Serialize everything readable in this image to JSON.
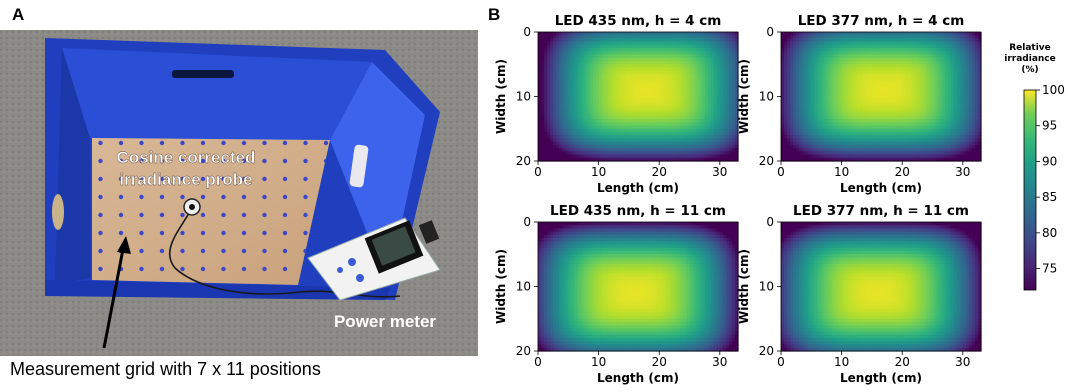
{
  "figure": {
    "panel_a_label": "A",
    "panel_b_label": "B"
  },
  "photo": {
    "probe_label_line1": "Cosine corrected",
    "probe_label_line2": "irradiance probe",
    "power_meter_label": "Power meter",
    "grid_caption": "Measurement grid with 7 x 11 positions"
  },
  "colorbar": {
    "title_line1": "Relative",
    "title_line2": "irradiance",
    "title_line3": "(%)",
    "min": 72,
    "max": 100,
    "ticks": [
      "75",
      "80",
      "85",
      "90",
      "95",
      "100"
    ]
  },
  "chart_data": [
    {
      "type": "heatmap",
      "title": "LED 435 nm, h = 4 cm",
      "xlabel": "Length (cm)",
      "ylabel": "Width (cm)",
      "xlim": [
        0,
        33
      ],
      "ylim": [
        20,
        0
      ],
      "xticks": [
        "0",
        "10",
        "20",
        "30"
      ],
      "yticks": [
        "0",
        "10",
        "20"
      ],
      "peak": {
        "x": 18,
        "y": 9
      },
      "values_percent": {
        "min": 72,
        "max": 100
      }
    },
    {
      "type": "heatmap",
      "title": "LED 377 nm, h = 4 cm",
      "xlabel": "Length (cm)",
      "ylabel": "Width (cm)",
      "xlim": [
        0,
        33
      ],
      "ylim": [
        20,
        0
      ],
      "xticks": [
        "0",
        "10",
        "20",
        "30"
      ],
      "yticks": [
        "0",
        "10",
        "20"
      ],
      "peak": {
        "x": 17,
        "y": 9
      },
      "values_percent": {
        "min": 72,
        "max": 100
      }
    },
    {
      "type": "heatmap",
      "title": "LED 435 nm, h = 11 cm",
      "xlabel": "Length (cm)",
      "ylabel": "Width (cm)",
      "xlim": [
        0,
        33
      ],
      "ylim": [
        20,
        0
      ],
      "xticks": [
        "0",
        "10",
        "20",
        "30"
      ],
      "yticks": [
        "0",
        "10",
        "20"
      ],
      "peak": {
        "x": 16,
        "y": 11
      },
      "values_percent": {
        "min": 72,
        "max": 100
      }
    },
    {
      "type": "heatmap",
      "title": "LED 377 nm, h = 11 cm",
      "xlabel": "Length (cm)",
      "ylabel": "Width (cm)",
      "xlim": [
        0,
        33
      ],
      "ylim": [
        20,
        0
      ],
      "xticks": [
        "0",
        "10",
        "20",
        "30"
      ],
      "yticks": [
        "0",
        "10",
        "20"
      ],
      "peak": {
        "x": 16,
        "y": 11
      },
      "values_percent": {
        "min": 72,
        "max": 100
      }
    }
  ]
}
